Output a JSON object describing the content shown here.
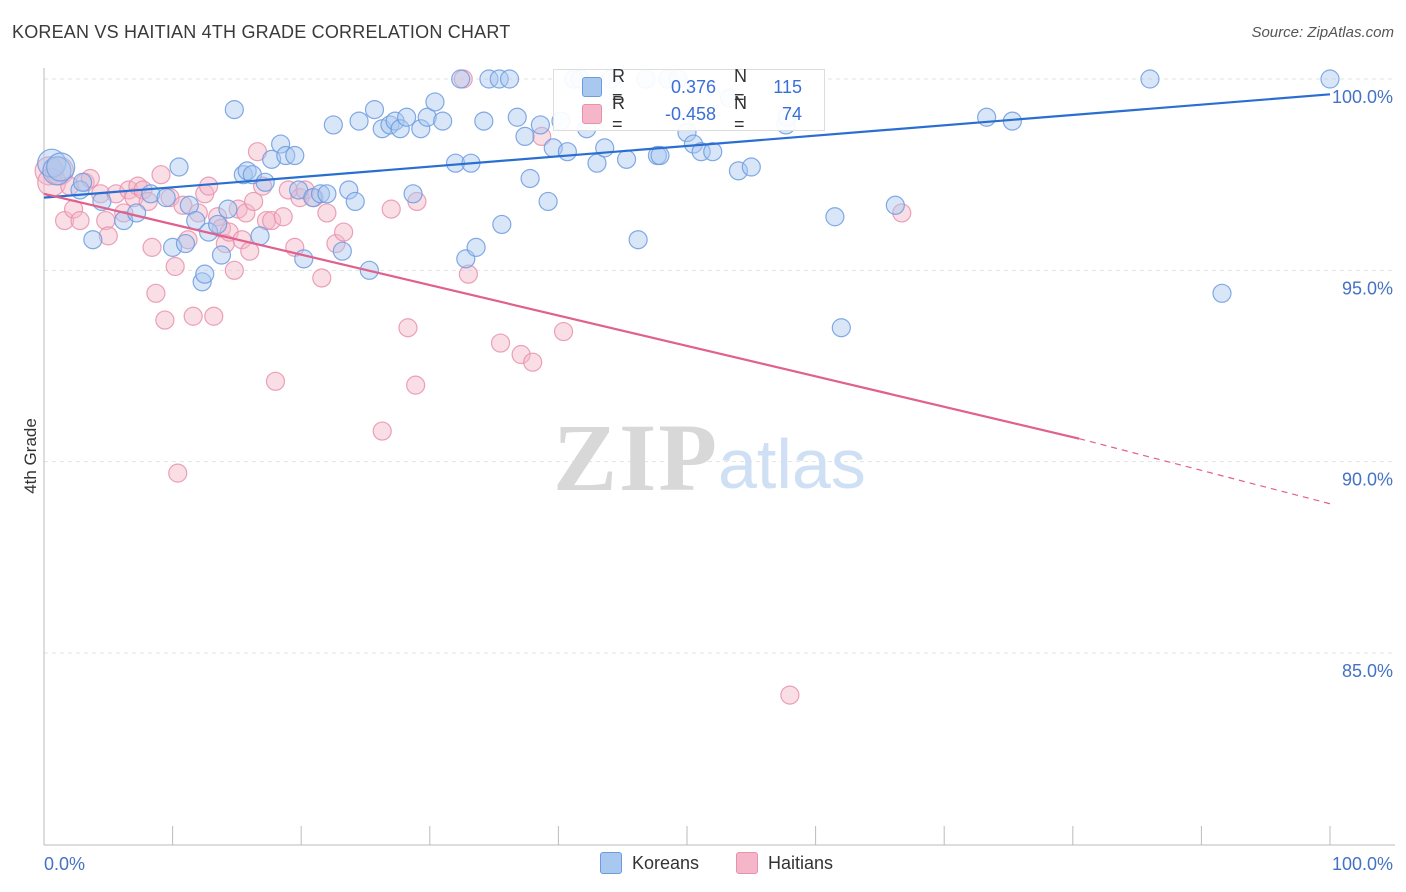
{
  "title": "KOREAN VS HAITIAN 4TH GRADE CORRELATION CHART",
  "source": "Source: ZipAtlas.com",
  "watermark": {
    "zip": "ZIP",
    "atlas": "atlas"
  },
  "legend": {
    "rows": [
      {
        "r_label": "R =",
        "r_value": "0.376",
        "n_label": "N =",
        "n_value": "115",
        "color": "#a8c8f0"
      },
      {
        "r_label": "R =",
        "r_value": "-0.458",
        "n_label": "N =",
        "n_value": "74",
        "color": "#f4b6c8"
      }
    ]
  },
  "bottom_legend": {
    "koreans": "Koreans",
    "haitians": "Haitians"
  },
  "chart_data": {
    "type": "scatter",
    "title": "KOREAN VS HAITIAN 4TH GRADE CORRELATION CHART",
    "xlabel": "",
    "ylabel": "4th Grade",
    "xlim": [
      0,
      100
    ],
    "ylim": [
      80.5,
      100.3
    ],
    "x_tick_labels": [
      "0.0%",
      "100.0%"
    ],
    "y_ticks": [
      {
        "value": 100,
        "label": "100.0%"
      },
      {
        "value": 95,
        "label": "95.0%"
      },
      {
        "value": 90,
        "label": "90.0%"
      },
      {
        "value": 85,
        "label": "85.0%"
      }
    ],
    "grid": true,
    "legend_position": "top-center",
    "series": [
      {
        "name": "Koreans",
        "color": "#6c9be0",
        "fill": "#a8c8f0",
        "trend": {
          "x": [
            0,
            100
          ],
          "y": [
            96.9,
            99.6
          ],
          "color": "#2a6fd0"
        },
        "points": [
          [
            0.6,
            97.8
          ],
          [
            1.0,
            97.6
          ],
          [
            1.3,
            97.7
          ],
          [
            2.8,
            97.1
          ],
          [
            4.5,
            96.8
          ],
          [
            3.0,
            97.3
          ],
          [
            3.8,
            95.8
          ],
          [
            6.2,
            96.3
          ],
          [
            7.2,
            96.5
          ],
          [
            8.3,
            97.0
          ],
          [
            9.5,
            96.9
          ],
          [
            10.0,
            95.6
          ],
          [
            10.5,
            97.7
          ],
          [
            11.0,
            95.7
          ],
          [
            11.3,
            96.7
          ],
          [
            11.8,
            96.3
          ],
          [
            12.3,
            94.7
          ],
          [
            12.5,
            94.9
          ],
          [
            12.8,
            96.0
          ],
          [
            13.5,
            96.2
          ],
          [
            13.8,
            95.4
          ],
          [
            14.3,
            96.6
          ],
          [
            14.8,
            99.2
          ],
          [
            15.5,
            97.5
          ],
          [
            15.8,
            97.6
          ],
          [
            16.2,
            97.5
          ],
          [
            16.8,
            95.9
          ],
          [
            17.2,
            97.3
          ],
          [
            17.7,
            97.9
          ],
          [
            18.4,
            98.3
          ],
          [
            18.8,
            98.0
          ],
          [
            19.5,
            98.0
          ],
          [
            19.8,
            97.1
          ],
          [
            20.2,
            95.3
          ],
          [
            20.9,
            96.9
          ],
          [
            21.5,
            97.0
          ],
          [
            22.0,
            97.0
          ],
          [
            22.5,
            98.8
          ],
          [
            23.2,
            95.5
          ],
          [
            23.7,
            97.1
          ],
          [
            24.2,
            96.8
          ],
          [
            24.5,
            98.9
          ],
          [
            25.3,
            95.0
          ],
          [
            25.7,
            99.2
          ],
          [
            26.3,
            98.7
          ],
          [
            26.9,
            98.8
          ],
          [
            27.3,
            98.9
          ],
          [
            27.7,
            98.7
          ],
          [
            28.2,
            99.0
          ],
          [
            28.7,
            97.0
          ],
          [
            29.3,
            98.7
          ],
          [
            29.8,
            99.0
          ],
          [
            30.4,
            99.4
          ],
          [
            31.0,
            98.9
          ],
          [
            32.0,
            97.8
          ],
          [
            32.4,
            100.0
          ],
          [
            32.8,
            95.3
          ],
          [
            33.2,
            97.8
          ],
          [
            33.6,
            95.6
          ],
          [
            34.2,
            98.9
          ],
          [
            34.6,
            100.0
          ],
          [
            35.4,
            100.0
          ],
          [
            35.6,
            96.2
          ],
          [
            36.2,
            100.0
          ],
          [
            36.8,
            99.0
          ],
          [
            37.4,
            98.5
          ],
          [
            37.8,
            97.4
          ],
          [
            38.6,
            98.8
          ],
          [
            39.2,
            96.8
          ],
          [
            39.6,
            98.2
          ],
          [
            40.2,
            98.9
          ],
          [
            40.7,
            98.1
          ],
          [
            41.2,
            100.0
          ],
          [
            41.7,
            100.0
          ],
          [
            42.2,
            98.7
          ],
          [
            43.0,
            97.8
          ],
          [
            43.6,
            98.2
          ],
          [
            44.1,
            100.0
          ],
          [
            45.3,
            97.9
          ],
          [
            46.2,
            95.8
          ],
          [
            46.8,
            100.0
          ],
          [
            47.7,
            98.0
          ],
          [
            47.9,
            98.0
          ],
          [
            48.5,
            100.0
          ],
          [
            49.3,
            100.0
          ],
          [
            50.0,
            98.6
          ],
          [
            50.5,
            98.3
          ],
          [
            51.1,
            98.1
          ],
          [
            52.0,
            98.1
          ],
          [
            53.3,
            99.5
          ],
          [
            54.0,
            97.6
          ],
          [
            55.0,
            97.7
          ],
          [
            57.7,
            98.8
          ],
          [
            57.8,
            99.0
          ],
          [
            61.5,
            96.4
          ],
          [
            62.0,
            93.5
          ],
          [
            66.2,
            96.7
          ],
          [
            73.3,
            99.0
          ],
          [
            75.3,
            98.9
          ],
          [
            86.0,
            100.0
          ],
          [
            91.6,
            94.4
          ],
          [
            100.0,
            100.0
          ]
        ]
      },
      {
        "name": "Haitians",
        "color": "#e891ad",
        "fill": "#f4b6c8",
        "trend": {
          "x": [
            0,
            80.5
          ],
          "y": [
            97.0,
            90.6
          ],
          "color": "#e0608e",
          "dashed_to": [
            100,
            88.9
          ]
        },
        "points": [
          [
            0.4,
            97.6
          ],
          [
            0.6,
            97.3
          ],
          [
            1.2,
            97.6
          ],
          [
            1.6,
            96.3
          ],
          [
            2.0,
            97.2
          ],
          [
            2.3,
            96.6
          ],
          [
            2.8,
            96.3
          ],
          [
            3.2,
            97.3
          ],
          [
            3.6,
            97.4
          ],
          [
            4.4,
            97.0
          ],
          [
            4.8,
            96.3
          ],
          [
            5.0,
            95.9
          ],
          [
            5.6,
            97.0
          ],
          [
            6.2,
            96.5
          ],
          [
            6.6,
            97.1
          ],
          [
            7.0,
            96.9
          ],
          [
            7.3,
            97.2
          ],
          [
            7.7,
            97.1
          ],
          [
            8.1,
            96.8
          ],
          [
            8.4,
            95.6
          ],
          [
            8.7,
            94.4
          ],
          [
            9.1,
            97.5
          ],
          [
            9.4,
            93.7
          ],
          [
            9.8,
            96.9
          ],
          [
            10.2,
            95.1
          ],
          [
            10.4,
            89.7
          ],
          [
            10.8,
            96.7
          ],
          [
            11.2,
            95.8
          ],
          [
            11.6,
            93.8
          ],
          [
            12.0,
            96.5
          ],
          [
            12.5,
            97.0
          ],
          [
            12.8,
            97.2
          ],
          [
            13.2,
            93.8
          ],
          [
            13.5,
            96.4
          ],
          [
            13.8,
            96.1
          ],
          [
            14.1,
            95.7
          ],
          [
            14.4,
            96.0
          ],
          [
            14.8,
            95.0
          ],
          [
            15.1,
            96.6
          ],
          [
            15.4,
            95.8
          ],
          [
            15.7,
            96.5
          ],
          [
            16.0,
            95.5
          ],
          [
            16.3,
            96.8
          ],
          [
            16.6,
            98.1
          ],
          [
            17.0,
            97.2
          ],
          [
            17.3,
            96.3
          ],
          [
            17.7,
            96.3
          ],
          [
            18.0,
            92.1
          ],
          [
            18.6,
            96.4
          ],
          [
            19.0,
            97.1
          ],
          [
            19.5,
            95.6
          ],
          [
            19.9,
            96.9
          ],
          [
            20.3,
            97.1
          ],
          [
            21.0,
            96.9
          ],
          [
            21.6,
            94.8
          ],
          [
            22.0,
            96.5
          ],
          [
            22.7,
            95.7
          ],
          [
            23.3,
            96.0
          ],
          [
            26.3,
            90.8
          ],
          [
            27.0,
            96.6
          ],
          [
            28.3,
            93.5
          ],
          [
            28.9,
            92.0
          ],
          [
            29.0,
            96.8
          ],
          [
            32.6,
            100.0
          ],
          [
            33.0,
            94.9
          ],
          [
            35.5,
            93.1
          ],
          [
            37.1,
            92.8
          ],
          [
            38.0,
            92.6
          ],
          [
            38.7,
            98.5
          ],
          [
            40.4,
            93.4
          ],
          [
            66.7,
            96.5
          ],
          [
            58.0,
            83.9
          ]
        ]
      }
    ]
  }
}
